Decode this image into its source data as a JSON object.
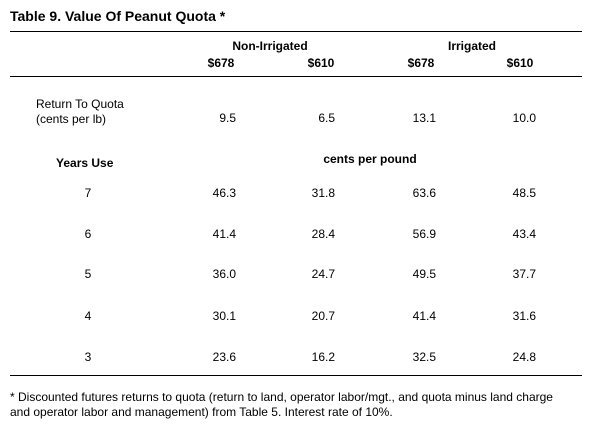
{
  "title": "Table 9. Value Of Peanut Quota *",
  "groups": [
    "Non-Irrigated",
    "Irrigated"
  ],
  "columns": [
    "$678",
    "$610",
    "$678",
    "$610"
  ],
  "return_row": {
    "label_line1": "Return To Quota",
    "label_line2": "(cents per lb)",
    "values": [
      "9.5",
      "6.5",
      "13.1",
      "10.0"
    ]
  },
  "years_header": "Years Use",
  "units_header": "cents per pound",
  "rows": [
    {
      "year": "7",
      "values": [
        "46.3",
        "31.8",
        "63.6",
        "48.5"
      ]
    },
    {
      "year": "6",
      "values": [
        "41.4",
        "28.4",
        "56.9",
        "43.4"
      ]
    },
    {
      "year": "5",
      "values": [
        "36.0",
        "24.7",
        "49.5",
        "37.7"
      ]
    },
    {
      "year": "4",
      "values": [
        "30.1",
        "20.7",
        "41.4",
        "31.6"
      ]
    },
    {
      "year": "3",
      "values": [
        "23.6",
        "16.2",
        "32.5",
        "24.8"
      ]
    }
  ],
  "footnote": "* Discounted futures returns to quota (return to land, operator labor/mgt., and quota minus land charge and operator labor and management) from Table 5.  Interest rate of 10%."
}
